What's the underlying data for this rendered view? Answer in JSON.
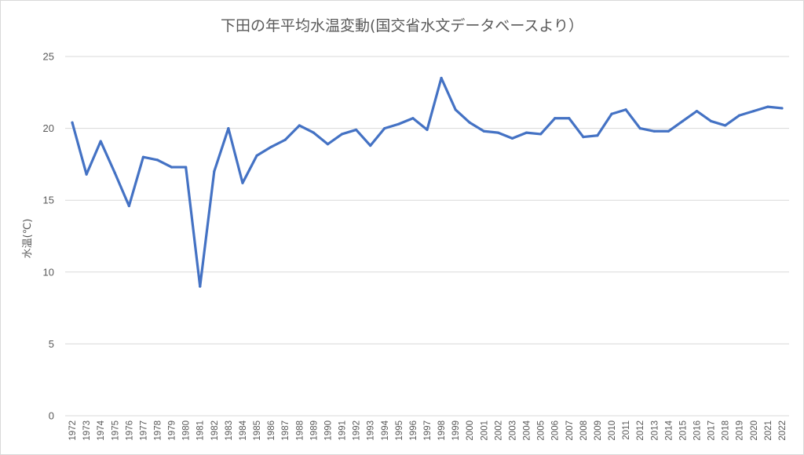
{
  "chart_data": {
    "type": "line",
    "title": "下田の年平均水温変動(国交省水文データベースより）",
    "xlabel": "",
    "ylabel": "水温(℃)",
    "ylim": [
      0,
      25
    ],
    "yticks": [
      0,
      5,
      10,
      15,
      20,
      25
    ],
    "grid": true,
    "legend": "none",
    "line_color": "#4472C4",
    "categories": [
      "1972",
      "1973",
      "1974",
      "1975",
      "1976",
      "1977",
      "1978",
      "1979",
      "1980",
      "1981",
      "1982",
      "1983",
      "1984",
      "1985",
      "1986",
      "1987",
      "1988",
      "1989",
      "1990",
      "1991",
      "1992",
      "1993",
      "1994",
      "1995",
      "1996",
      "1997",
      "1998",
      "1999",
      "2000",
      "2001",
      "2002",
      "2003",
      "2004",
      "2005",
      "2006",
      "2007",
      "2008",
      "2009",
      "2010",
      "2011",
      "2012",
      "2013",
      "2014",
      "2015",
      "2016",
      "2017",
      "2018",
      "2019",
      "2020",
      "2021",
      "2022"
    ],
    "series": [
      {
        "values": [
          20.4,
          16.8,
          19.1,
          16.9,
          14.6,
          18.0,
          17.8,
          17.3,
          17.3,
          9.0,
          17.0,
          20.0,
          16.2,
          18.1,
          18.7,
          19.2,
          20.2,
          19.7,
          18.9,
          19.6,
          19.9,
          18.8,
          20.0,
          20.3,
          20.7,
          19.9,
          23.5,
          21.3,
          20.4,
          19.8,
          19.7,
          19.3,
          19.7,
          19.6,
          20.7,
          20.7,
          19.4,
          19.5,
          21.0,
          21.3,
          20.0,
          19.8,
          19.8,
          20.5,
          21.2,
          20.5,
          20.2,
          20.9,
          21.2,
          21.5,
          21.4
        ]
      }
    ]
  }
}
